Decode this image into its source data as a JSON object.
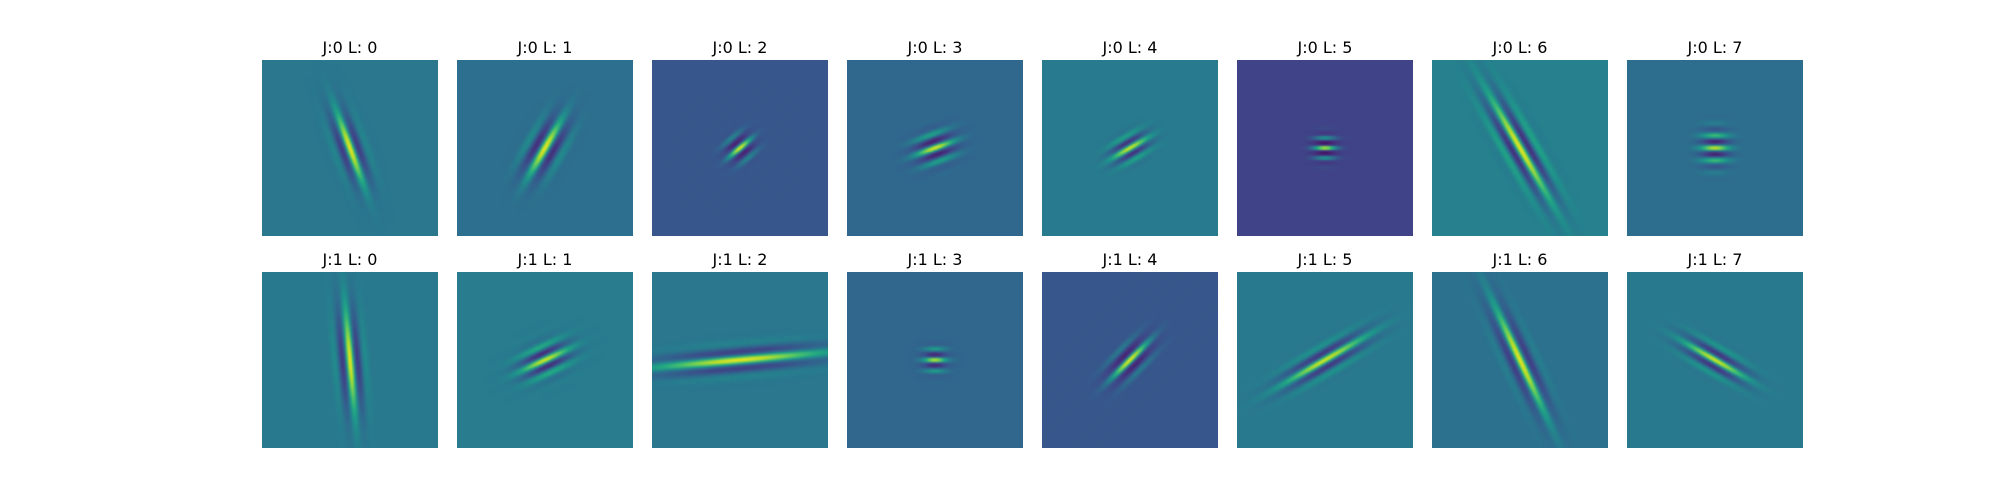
{
  "chart_data": {
    "type": "heatmap",
    "description_free": true,
    "rows": [
      {
        "J": 0,
        "panels": [
          {
            "title": "J:0 L: 0",
            "J": 0,
            "L": 0,
            "background": "#2a778e",
            "angle_deg": 70,
            "sigma_u": 13,
            "sigma_v": 4,
            "freq": 0.32,
            "amp": 0.95
          },
          {
            "title": "J:0 L: 1",
            "J": 0,
            "L": 1,
            "background": "#2d708e",
            "angle_deg": 120,
            "sigma_u": 11,
            "sigma_v": 5,
            "freq": 0.3,
            "amp": 0.95
          },
          {
            "title": "J:0 L: 2",
            "J": 0,
            "L": 2,
            "background": "#3b5a8c",
            "angle_deg": 140,
            "sigma_u": 5,
            "sigma_v": 4,
            "freq": 0.42,
            "amp": 0.95
          },
          {
            "title": "J:0 L: 3",
            "J": 0,
            "L": 3,
            "background": "#30678d",
            "angle_deg": 160,
            "sigma_u": 7,
            "sigma_v": 5,
            "freq": 0.4,
            "amp": 0.95
          },
          {
            "title": "J:0 L: 4",
            "J": 0,
            "L": 4,
            "background": "#297b8e",
            "angle_deg": 150,
            "sigma_u": 7,
            "sigma_v": 4,
            "freq": 0.45,
            "amp": 0.9
          },
          {
            "title": "J:0 L: 5",
            "J": 0,
            "L": 5,
            "background": "#414487",
            "angle_deg": 0,
            "sigma_u": 4,
            "sigma_v": 4,
            "freq": 0.55,
            "amp": 0.95
          },
          {
            "title": "J:0 L: 6",
            "J": 0,
            "L": 6,
            "background": "#27808e",
            "angle_deg": 60,
            "sigma_u": 20,
            "sigma_v": 5,
            "freq": 0.34,
            "amp": 0.95
          },
          {
            "title": "J:0 L: 7",
            "J": 0,
            "L": 7,
            "background": "#2e6e8e",
            "angle_deg": 0,
            "sigma_u": 5,
            "sigma_v": 6,
            "freq": 0.45,
            "amp": 0.9
          }
        ]
      },
      {
        "J": 1,
        "panels": [
          {
            "title": "J:1 L: 0",
            "J": 1,
            "L": 0,
            "background": "#297a8e",
            "angle_deg": 85,
            "sigma_u": 18,
            "sigma_v": 4,
            "freq": 0.34,
            "amp": 0.95
          },
          {
            "title": "J:1 L: 1",
            "J": 1,
            "L": 1,
            "background": "#287d8e",
            "angle_deg": 155,
            "sigma_u": 9,
            "sigma_v": 5,
            "freq": 0.4,
            "amp": 0.9
          },
          {
            "title": "J:1 L: 2",
            "J": 1,
            "L": 2,
            "background": "#2a788e",
            "angle_deg": 175,
            "sigma_u": 28,
            "sigma_v": 4,
            "freq": 0.3,
            "amp": 0.95
          },
          {
            "title": "J:1 L: 3",
            "J": 1,
            "L": 3,
            "background": "#31668e",
            "angle_deg": 0,
            "sigma_u": 4,
            "sigma_v": 4,
            "freq": 0.5,
            "amp": 0.9
          },
          {
            "title": "J:1 L: 4",
            "J": 1,
            "L": 4,
            "background": "#3b5a8c",
            "angle_deg": 135,
            "sigma_u": 9,
            "sigma_v": 4,
            "freq": 0.38,
            "amp": 0.95
          },
          {
            "title": "J:1 L: 5",
            "J": 1,
            "L": 5,
            "background": "#2a7b8e",
            "angle_deg": 150,
            "sigma_u": 16,
            "sigma_v": 4,
            "freq": 0.38,
            "amp": 0.9
          },
          {
            "title": "J:1 L: 6",
            "J": 1,
            "L": 6,
            "background": "#2c728e",
            "angle_deg": 65,
            "sigma_u": 20,
            "sigma_v": 4,
            "freq": 0.3,
            "amp": 0.95
          },
          {
            "title": "J:1 L: 7",
            "J": 1,
            "L": 7,
            "background": "#297a8e",
            "angle_deg": 30,
            "sigma_u": 12,
            "sigma_v": 4,
            "freq": 0.4,
            "amp": 0.9
          }
        ]
      }
    ],
    "colormap": "viridis",
    "axes_visible": false,
    "title": "",
    "xlabel": "",
    "ylabel": ""
  }
}
